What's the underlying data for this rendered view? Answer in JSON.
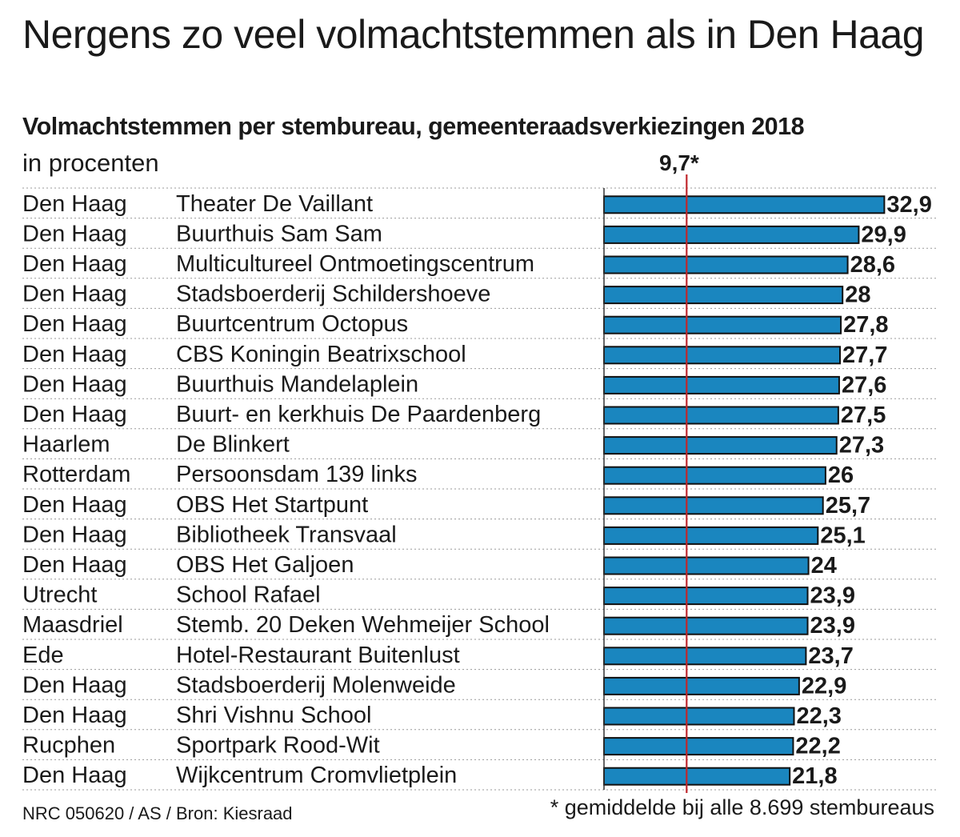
{
  "title": "Nergens zo veel volmachtstemmen als in Den Haag",
  "source": "NRC 050620 / AS / Bron: Kiesraad",
  "footnote": "* gemiddelde bij alle 8.699 stembureaus",
  "colors": {
    "bar": "#1a86bf",
    "bar_outline": "#111111",
    "reference_line": "#c0282d",
    "text": "#1a1a1a"
  },
  "chart_data": {
    "type": "bar",
    "orientation": "horizontal",
    "title": "Volmachtstemmen per stembureau, gemeenteraadsverkiezingen 2018",
    "subtitle": "in procenten",
    "reference_line": {
      "value": 9.7,
      "label": "9,7*"
    },
    "xlim": [
      0,
      40
    ],
    "grid": false,
    "rows": [
      {
        "city": "Den Haag",
        "location": "Theater De Vaillant",
        "value": 32.9,
        "label": "32,9"
      },
      {
        "city": "Den Haag",
        "location": "Buurthuis Sam Sam",
        "value": 29.9,
        "label": "29,9"
      },
      {
        "city": "Den Haag",
        "location": "Multicultureel Ontmoetingscentrum",
        "value": 28.6,
        "label": "28,6"
      },
      {
        "city": "Den Haag",
        "location": "Stadsboerderij Schildershoeve",
        "value": 28,
        "label": "28"
      },
      {
        "city": "Den Haag",
        "location": "Buurtcentrum Octopus",
        "value": 27.8,
        "label": "27,8"
      },
      {
        "city": "Den Haag",
        "location": "CBS Koningin Beatrixschool",
        "value": 27.7,
        "label": "27,7"
      },
      {
        "city": "Den Haag",
        "location": "Buurthuis Mandelaplein",
        "value": 27.6,
        "label": "27,6"
      },
      {
        "city": "Den Haag",
        "location": "Buurt- en kerkhuis De Paardenberg",
        "value": 27.5,
        "label": "27,5"
      },
      {
        "city": "Haarlem",
        "location": "De Blinkert",
        "value": 27.3,
        "label": "27,3"
      },
      {
        "city": "Rotterdam",
        "location": "Persoonsdam 139 links",
        "value": 26,
        "label": "26"
      },
      {
        "city": "Den Haag",
        "location": "OBS Het Startpunt",
        "value": 25.7,
        "label": "25,7"
      },
      {
        "city": "Den Haag",
        "location": "Bibliotheek Transvaal",
        "value": 25.1,
        "label": "25,1"
      },
      {
        "city": "Den Haag",
        "location": "OBS Het Galjoen",
        "value": 24,
        "label": "24"
      },
      {
        "city": "Utrecht",
        "location": "School Rafael",
        "value": 23.9,
        "label": "23,9"
      },
      {
        "city": "Maasdriel",
        "location": "Stemb. 20 Deken Wehmeijer School",
        "value": 23.9,
        "label": "23,9"
      },
      {
        "city": "Ede",
        "location": "Hotel-Restaurant Buitenlust",
        "value": 23.7,
        "label": "23,7"
      },
      {
        "city": "Den Haag",
        "location": "Stadsboerderij Molenweide",
        "value": 22.9,
        "label": "22,9"
      },
      {
        "city": "Den Haag",
        "location": "Shri Vishnu School",
        "value": 22.3,
        "label": "22,3"
      },
      {
        "city": "Rucphen",
        "location": "Sportpark Rood-Wit",
        "value": 22.2,
        "label": "22,2"
      },
      {
        "city": "Den Haag",
        "location": "Wijkcentrum Cromvlietplein",
        "value": 21.8,
        "label": "21,8"
      }
    ]
  }
}
